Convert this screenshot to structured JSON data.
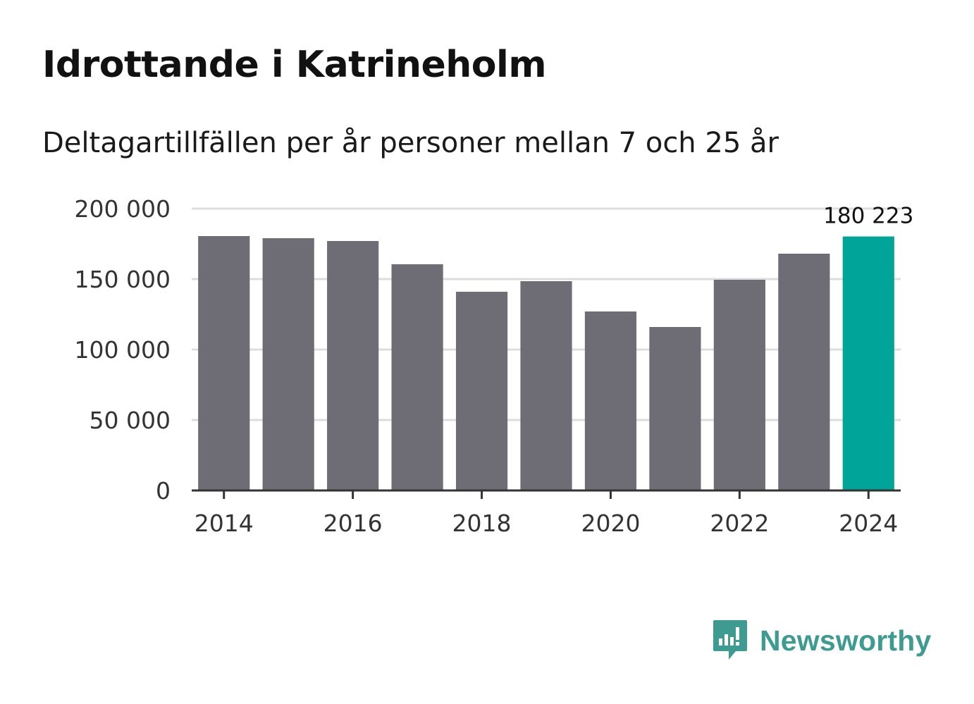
{
  "chart_data": {
    "type": "bar",
    "title": "Idrottande i Katrineholm",
    "subtitle": "Deltagartillfällen per år personer mellan 7 och 25 år",
    "categories": [
      "2014",
      "2015",
      "2016",
      "2017",
      "2018",
      "2019",
      "2020",
      "2021",
      "2022",
      "2023",
      "2024"
    ],
    "values": [
      180500,
      179000,
      177000,
      160500,
      141000,
      148500,
      127000,
      116000,
      149500,
      168000,
      180223
    ],
    "highlight_index": 10,
    "highlight_label": "180 223",
    "ylim": [
      0,
      200000
    ],
    "yticks": [
      0,
      50000,
      100000,
      150000,
      200000
    ],
    "ytick_labels": [
      "0",
      "50 000",
      "100 000",
      "150 000",
      "200 000"
    ],
    "xtick_labels": [
      "2014",
      "2016",
      "2018",
      "2020",
      "2022",
      "2024"
    ],
    "xtick_category_index": [
      0,
      2,
      4,
      6,
      8,
      10
    ],
    "xlabel": "",
    "ylabel": "",
    "grid": true
  },
  "colors": {
    "bar": "#6e6d75",
    "highlight": "#00a499",
    "grid": "#dddddd",
    "axis": "#333333",
    "tick_text": "#333333",
    "brand": "#3e9b91"
  },
  "brand": {
    "name": "Newsworthy",
    "icon": "newsworthy-logo-icon"
  }
}
